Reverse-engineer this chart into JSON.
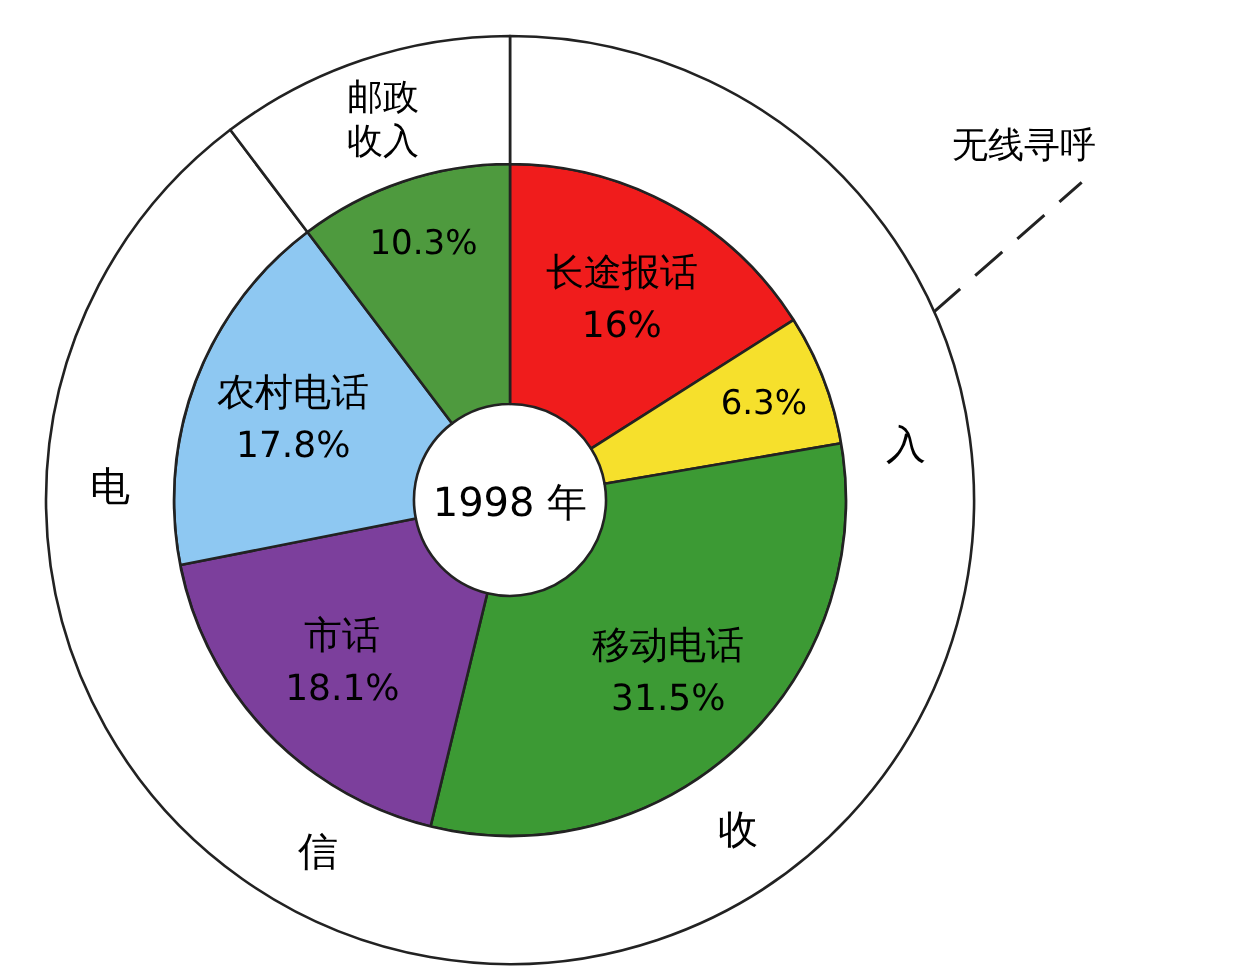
{
  "chart_data": [
    {
      "type": "donut",
      "title": "1998 年",
      "categories": [
        "长途报话",
        "无线寻呼",
        "移动电话",
        "市话",
        "农村电话",
        null
      ],
      "values": [
        16,
        6.3,
        31.5,
        18.1,
        17.8,
        10.3
      ],
      "colors": [
        "#f01c1c",
        "#f6e02c",
        "#3c9a34",
        "#7c3f9c",
        "#8ec8f2",
        "#4e9a3e"
      ],
      "value_labels": [
        "16%",
        "6.3%",
        "31.5%",
        "18.1%",
        "17.8%",
        "10.3%"
      ]
    },
    {
      "type": "donut",
      "categories": [
        null,
        "邮政收入"
      ],
      "values": [
        89.7,
        10.3
      ],
      "colors": [
        "#ffffff",
        "#ffffff"
      ],
      "annotations": [
        "电",
        "信",
        "收",
        "入"
      ]
    }
  ]
}
